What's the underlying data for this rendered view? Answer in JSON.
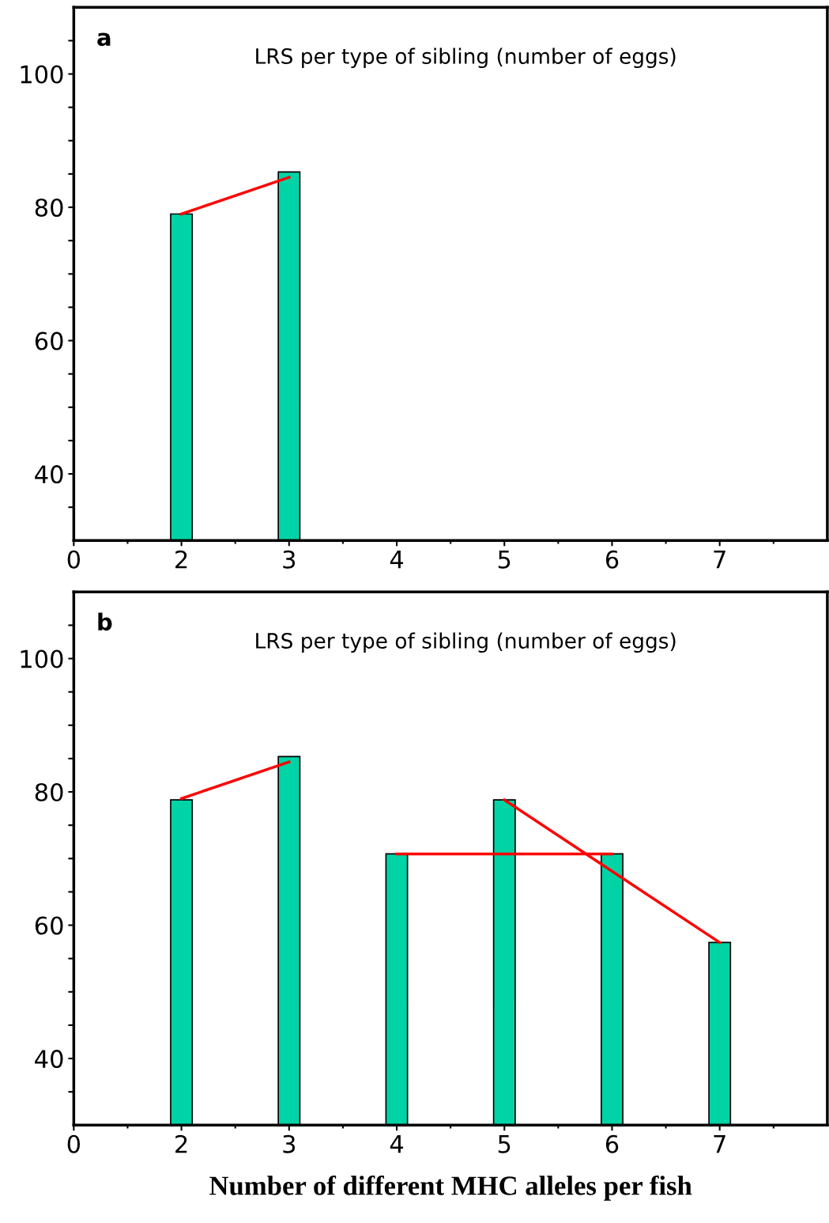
{
  "chart_data": [
    {
      "type": "bar",
      "title": "LRS per type of sibling (number of eggs)",
      "annotations": [
        "a"
      ],
      "categories": [
        "0",
        "2",
        "3",
        "4",
        "5",
        "6",
        "7"
      ],
      "series": [
        {
          "color": "#00d4a6",
          "values": [
            null,
            79,
            85.3,
            null,
            null,
            null,
            null
          ]
        },
        {
          "type": "line",
          "color": "#ff0000",
          "x": [
            "2",
            "3"
          ],
          "values": [
            79,
            84.5
          ]
        }
      ],
      "ylim": [
        30,
        110
      ],
      "yticks": [
        {
          "value": 35,
          "label": null
        },
        40,
        {
          "value": 45,
          "label": null
        },
        {
          "value": 50,
          "label": null
        },
        {
          "value": 55,
          "label": null
        },
        60,
        {
          "value": 65,
          "label": null
        },
        {
          "value": 70,
          "label": null
        },
        {
          "value": 75,
          "label": null
        },
        80,
        {
          "value": 85,
          "label": null
        },
        {
          "value": 90,
          "label": null
        },
        {
          "value": 95,
          "label": null
        },
        100,
        {
          "value": 105,
          "label": null
        }
      ],
      "grid": false,
      "marker": "none"
    },
    {
      "type": "bar",
      "title": "LRS per type of sibling (number of eggs)",
      "annotations": [
        "b"
      ],
      "xlabel": "Number of different MHC alleles per fish",
      "categories": [
        "0",
        "2",
        "3",
        "4",
        "5",
        "6",
        "7"
      ],
      "series": [
        {
          "color": "#00d4a6",
          "values": [
            null,
            78.8,
            85.3,
            70.7,
            78.8,
            70.7,
            57.4
          ]
        },
        {
          "type": "line",
          "color": "#ff0000",
          "x": [
            "2",
            "3"
          ],
          "values": [
            79,
            84.5
          ]
        },
        {
          "type": "line",
          "color": "#ff0000",
          "x": [
            "4",
            "6"
          ],
          "values": [
            70.7,
            70.7
          ]
        },
        {
          "type": "line",
          "color": "#ff0000",
          "x": [
            "5",
            "7"
          ],
          "values": [
            78.8,
            57.4
          ]
        }
      ],
      "ylim": [
        30,
        110
      ],
      "yticks": [
        {
          "value": 35,
          "label": null
        },
        40,
        {
          "value": 45,
          "label": null
        },
        {
          "value": 50,
          "label": null
        },
        {
          "value": 55,
          "label": null
        },
        60,
        {
          "value": 65,
          "label": null
        },
        {
          "value": 70,
          "label": null
        },
        {
          "value": 75,
          "label": null
        },
        80,
        {
          "value": 85,
          "label": null
        },
        {
          "value": 90,
          "label": null
        },
        {
          "value": 95,
          "label": null
        },
        100,
        {
          "value": 105,
          "label": null
        }
      ],
      "grid": false,
      "marker": "none"
    }
  ]
}
